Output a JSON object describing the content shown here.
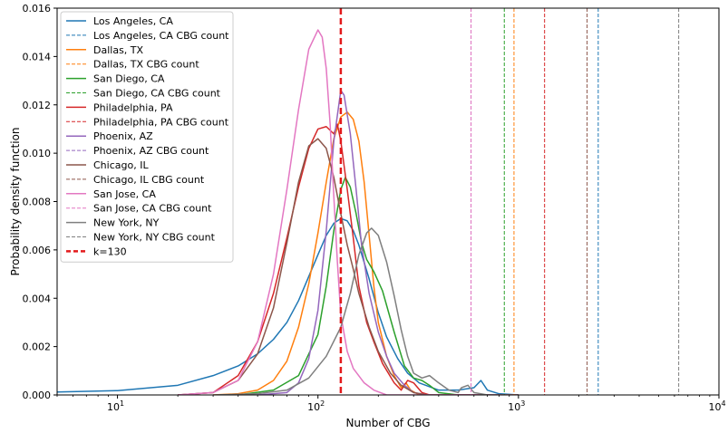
{
  "chart_data": {
    "type": "line",
    "title": "",
    "xlabel": "Number of CBG",
    "ylabel": "Probability density function",
    "xscale": "log",
    "xlim": [
      5,
      10000
    ],
    "ylim": [
      0,
      0.016
    ],
    "grid": false,
    "legend_position": "top-left",
    "x_ticks": [
      {
        "value": 10,
        "base": "10",
        "exp": "1"
      },
      {
        "value": 100,
        "base": "10",
        "exp": "2"
      },
      {
        "value": 1000,
        "base": "10",
        "exp": "3"
      },
      {
        "value": 10000,
        "base": "10",
        "exp": "4"
      }
    ],
    "y_ticks": [
      "0.000",
      "0.002",
      "0.004",
      "0.006",
      "0.008",
      "0.010",
      "0.012",
      "0.014",
      "0.016"
    ],
    "y_tick_values": [
      0,
      0.002,
      0.004,
      0.006,
      0.008,
      0.01,
      0.012,
      0.014,
      0.016
    ],
    "series": [
      {
        "name": "Los Angeles, CA",
        "cbg_label": "Los Angeles, CA CBG count",
        "color": "#1f77b4",
        "cbg_count": 2500,
        "points": [
          [
            5,
            0.00012
          ],
          [
            10,
            0.00018
          ],
          [
            20,
            0.0004
          ],
          [
            30,
            0.0008
          ],
          [
            40,
            0.0012
          ],
          [
            50,
            0.0017
          ],
          [
            60,
            0.0023
          ],
          [
            70,
            0.003
          ],
          [
            80,
            0.0039
          ],
          [
            90,
            0.0049
          ],
          [
            100,
            0.0058
          ],
          [
            110,
            0.0066
          ],
          [
            120,
            0.0071
          ],
          [
            130,
            0.0073
          ],
          [
            140,
            0.0072
          ],
          [
            150,
            0.0068
          ],
          [
            160,
            0.0062
          ],
          [
            180,
            0.0048
          ],
          [
            200,
            0.0034
          ],
          [
            220,
            0.0024
          ],
          [
            250,
            0.0015
          ],
          [
            280,
            0.0009
          ],
          [
            320,
            0.0005
          ],
          [
            400,
            0.0002
          ],
          [
            500,
            0.0002
          ],
          [
            600,
            0.0003
          ],
          [
            650,
            0.0006
          ],
          [
            700,
            0.0002
          ],
          [
            800,
            5e-05
          ],
          [
            1000,
            0
          ]
        ]
      },
      {
        "name": "Dallas, TX",
        "cbg_label": "Dallas, TX CBG count",
        "color": "#ff7f0e",
        "cbg_count": 950,
        "points": [
          [
            30,
            0
          ],
          [
            40,
            5e-05
          ],
          [
            50,
            0.0002
          ],
          [
            60,
            0.0006
          ],
          [
            70,
            0.0014
          ],
          [
            80,
            0.0028
          ],
          [
            90,
            0.0046
          ],
          [
            100,
            0.0067
          ],
          [
            110,
            0.0088
          ],
          [
            120,
            0.0106
          ],
          [
            130,
            0.0115
          ],
          [
            140,
            0.0117
          ],
          [
            150,
            0.0114
          ],
          [
            160,
            0.0105
          ],
          [
            170,
            0.0088
          ],
          [
            180,
            0.0066
          ],
          [
            190,
            0.0045
          ],
          [
            200,
            0.003
          ],
          [
            220,
            0.0016
          ],
          [
            240,
            0.0008
          ],
          [
            260,
            0.0003
          ],
          [
            275,
            0.0005
          ],
          [
            290,
            0.0002
          ],
          [
            320,
            0
          ],
          [
            1000,
            0
          ]
        ]
      },
      {
        "name": "San Diego, CA",
        "cbg_label": "San Diego, CA CBG count",
        "color": "#2ca02c",
        "cbg_count": 850,
        "points": [
          [
            40,
            0
          ],
          [
            60,
            0.0002
          ],
          [
            80,
            0.0008
          ],
          [
            100,
            0.0025
          ],
          [
            110,
            0.0045
          ],
          [
            120,
            0.0068
          ],
          [
            130,
            0.0085
          ],
          [
            137,
            0.009
          ],
          [
            145,
            0.0086
          ],
          [
            155,
            0.0075
          ],
          [
            165,
            0.0063
          ],
          [
            175,
            0.0056
          ],
          [
            190,
            0.0051
          ],
          [
            210,
            0.0043
          ],
          [
            240,
            0.0026
          ],
          [
            270,
            0.0012
          ],
          [
            300,
            0.0007
          ],
          [
            330,
            0.0006
          ],
          [
            360,
            0.0004
          ],
          [
            400,
            0.0001
          ],
          [
            500,
            0
          ],
          [
            1000,
            0
          ]
        ]
      },
      {
        "name": "Philadelphia, PA",
        "cbg_label": "Philadelphia, PA CBG count",
        "color": "#d62728",
        "cbg_count": 1350,
        "points": [
          [
            20,
            0
          ],
          [
            30,
            0.0001
          ],
          [
            40,
            0.0008
          ],
          [
            50,
            0.0022
          ],
          [
            60,
            0.0042
          ],
          [
            70,
            0.0065
          ],
          [
            80,
            0.0086
          ],
          [
            90,
            0.0102
          ],
          [
            100,
            0.011
          ],
          [
            110,
            0.0111
          ],
          [
            120,
            0.0108
          ],
          [
            125,
            0.0112
          ],
          [
            130,
            0.0105
          ],
          [
            140,
            0.0085
          ],
          [
            150,
            0.0065
          ],
          [
            160,
            0.0045
          ],
          [
            175,
            0.003
          ],
          [
            190,
            0.0022
          ],
          [
            210,
            0.0013
          ],
          [
            240,
            0.0005
          ],
          [
            260,
            0.0002
          ],
          [
            280,
            0.0006
          ],
          [
            300,
            0.0005
          ],
          [
            330,
            0.0001
          ],
          [
            360,
            0
          ],
          [
            1000,
            0
          ]
        ]
      },
      {
        "name": "Phoenix, AZ",
        "cbg_label": "Phoenix, AZ CBG count",
        "color": "#9467bd",
        "cbg_count": 580,
        "points": [
          [
            50,
            0
          ],
          [
            70,
            0.0001
          ],
          [
            80,
            0.0005
          ],
          [
            90,
            0.0015
          ],
          [
            100,
            0.0035
          ],
          [
            110,
            0.0068
          ],
          [
            120,
            0.0105
          ],
          [
            130,
            0.0126
          ],
          [
            135,
            0.0124
          ],
          [
            145,
            0.0108
          ],
          [
            155,
            0.0085
          ],
          [
            165,
            0.0062
          ],
          [
            180,
            0.0042
          ],
          [
            200,
            0.0026
          ],
          [
            220,
            0.0016
          ],
          [
            240,
            0.0009
          ],
          [
            270,
            0.0004
          ],
          [
            300,
            0.0001
          ],
          [
            350,
            0
          ],
          [
            1000,
            0
          ]
        ]
      },
      {
        "name": "Chicago, IL",
        "cbg_label": "Chicago, IL CBG count",
        "color": "#8c564b",
        "cbg_count": 2200,
        "points": [
          [
            20,
            0
          ],
          [
            30,
            0.0001
          ],
          [
            40,
            0.0006
          ],
          [
            50,
            0.0017
          ],
          [
            60,
            0.0036
          ],
          [
            70,
            0.0063
          ],
          [
            80,
            0.0088
          ],
          [
            90,
            0.0103
          ],
          [
            100,
            0.0106
          ],
          [
            110,
            0.0102
          ],
          [
            120,
            0.009
          ],
          [
            130,
            0.0075
          ],
          [
            140,
            0.0062
          ],
          [
            150,
            0.0052
          ],
          [
            160,
            0.0042
          ],
          [
            180,
            0.0028
          ],
          [
            200,
            0.0018
          ],
          [
            230,
            0.0009
          ],
          [
            260,
            0.0004
          ],
          [
            300,
            0.0001
          ],
          [
            350,
            0
          ],
          [
            1000,
            0
          ]
        ]
      },
      {
        "name": "San Jose, CA",
        "cbg_label": "San Jose, CA CBG count",
        "color": "#e377c2",
        "cbg_count": 580,
        "points": [
          [
            20,
            0
          ],
          [
            30,
            0.0001
          ],
          [
            40,
            0.0006
          ],
          [
            50,
            0.0022
          ],
          [
            60,
            0.005
          ],
          [
            70,
            0.0085
          ],
          [
            80,
            0.0118
          ],
          [
            90,
            0.0143
          ],
          [
            100,
            0.0151
          ],
          [
            105,
            0.0148
          ],
          [
            110,
            0.0135
          ],
          [
            115,
            0.0112
          ],
          [
            120,
            0.0082
          ],
          [
            125,
            0.0055
          ],
          [
            130,
            0.0033
          ],
          [
            140,
            0.0018
          ],
          [
            150,
            0.0011
          ],
          [
            170,
            0.0005
          ],
          [
            190,
            0.0002
          ],
          [
            220,
            0
          ],
          [
            1000,
            0
          ]
        ]
      },
      {
        "name": "New York, NY",
        "cbg_label": "New York, NY CBG count",
        "color": "#7f7f7f",
        "cbg_count": 6300,
        "points": [
          [
            30,
            0
          ],
          [
            50,
            5e-05
          ],
          [
            70,
            0.0002
          ],
          [
            90,
            0.0007
          ],
          [
            110,
            0.0016
          ],
          [
            130,
            0.0028
          ],
          [
            145,
            0.0042
          ],
          [
            160,
            0.0058
          ],
          [
            175,
            0.0067
          ],
          [
            185,
            0.0069
          ],
          [
            200,
            0.0066
          ],
          [
            220,
            0.0055
          ],
          [
            240,
            0.0041
          ],
          [
            260,
            0.0027
          ],
          [
            280,
            0.0016
          ],
          [
            300,
            0.0009
          ],
          [
            330,
            0.0007
          ],
          [
            360,
            0.0008
          ],
          [
            400,
            0.0005
          ],
          [
            450,
            0.0002
          ],
          [
            500,
            0.0001
          ],
          [
            520,
            0.0003
          ],
          [
            560,
            0.0004
          ],
          [
            600,
            0.0001
          ],
          [
            700,
            0
          ],
          [
            1000,
            0
          ]
        ]
      }
    ],
    "reference_line": {
      "name": "k=130",
      "value": 130,
      "color": "#e31a1c"
    }
  }
}
